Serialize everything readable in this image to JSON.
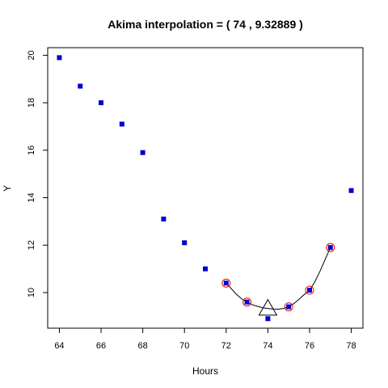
{
  "chart_data": {
    "type": "scatter",
    "title": "Akima interpolation = ( 74 , 9.32889 )",
    "xlabel": "Hours",
    "ylabel": "Y",
    "xlim": [
      63.44,
      78.56
    ],
    "ylim": [
      8.5,
      20.32
    ],
    "x_ticks": [
      64,
      66,
      68,
      70,
      72,
      74,
      76,
      78
    ],
    "y_ticks": [
      10,
      12,
      14,
      16,
      18,
      20
    ],
    "grid": false,
    "legend": "none",
    "colors": {
      "points": "#0000cd",
      "highlight": "#ff0000",
      "curve": "#000000",
      "marker": "#000000",
      "axes": "#000000"
    },
    "series": [
      {
        "kind": "points",
        "x": [
          64,
          65,
          66,
          67,
          68,
          69,
          70,
          71,
          72,
          73,
          74,
          75,
          76,
          77,
          78
        ],
        "y": [
          19.9,
          18.7,
          18.0,
          17.1,
          15.9,
          13.1,
          12.1,
          11.0,
          10.4,
          9.6,
          8.9,
          9.4,
          10.1,
          11.9,
          14.3
        ]
      },
      {
        "kind": "highlighted-points",
        "x": [
          72,
          73,
          75,
          76,
          77
        ],
        "y": [
          10.4,
          9.6,
          9.4,
          10.1,
          11.9
        ]
      },
      {
        "kind": "interpolation-curve",
        "x": [
          72,
          72.25,
          72.5,
          72.75,
          73,
          73.25,
          73.5,
          73.75,
          74,
          74.25,
          74.5,
          74.75,
          75,
          75.25,
          75.5,
          75.75,
          76,
          76.25,
          76.5,
          76.75,
          77
        ],
        "y": [
          10.4,
          10.16,
          9.92,
          9.73,
          9.6,
          9.49,
          9.42,
          9.36,
          9.33,
          9.31,
          9.3,
          9.33,
          9.4,
          9.54,
          9.72,
          9.92,
          10.1,
          10.45,
          10.9,
          11.4,
          11.9
        ]
      },
      {
        "kind": "interpolated-point",
        "x": [
          74
        ],
        "y": [
          9.32889
        ]
      }
    ]
  }
}
